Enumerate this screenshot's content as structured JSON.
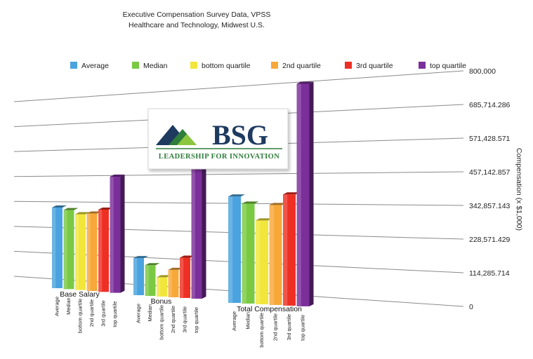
{
  "chart_data": {
    "type": "bar",
    "title": "Executive Compensation Survey Data, VPSS",
    "subtitle": "Healthcare and Technology, Midwest U.S.",
    "ylabel": "Compensation (x $1,000)",
    "ylim": [
      0,
      800000
    ],
    "y_ticks": [
      "0",
      "114,285.714",
      "228,571.429",
      "342,857.143",
      "457,142.857",
      "571,428.571",
      "685,714.286",
      "800,000"
    ],
    "grid": true,
    "legend_position": "top",
    "categories": [
      "Base Salary",
      "Bonus",
      "Total Compensation"
    ],
    "series": [
      {
        "name": "Average",
        "color": "#4aa3df",
        "values": [
          250000,
          115000,
          330000
        ]
      },
      {
        "name": "Median",
        "color": "#7ac943",
        "values": [
          245000,
          95000,
          310000
        ]
      },
      {
        "name": "bottom quartile",
        "color": "#f2e63a",
        "values": [
          235000,
          60000,
          260000
        ]
      },
      {
        "name": "2nd quartile",
        "color": "#f7a839",
        "values": [
          240000,
          85000,
          310000
        ]
      },
      {
        "name": "3rd quartile",
        "color": "#ee3024",
        "values": [
          255000,
          125000,
          345000
        ]
      },
      {
        "name": "top quartile",
        "color": "#7b2f9a",
        "values": [
          360000,
          570000,
          690000
        ]
      }
    ],
    "bar_labels": [
      "Average",
      "Median",
      "bottom quartile",
      "2nd quartile",
      "3rd quartile",
      "top quartile"
    ]
  },
  "logo": {
    "name": "BSG",
    "tagline": "LEADERSHIP FOR INNOVATION",
    "colors": {
      "navy": "#1e3a5f",
      "green": "#2f7d3b",
      "light_green": "#8cc63f"
    }
  }
}
